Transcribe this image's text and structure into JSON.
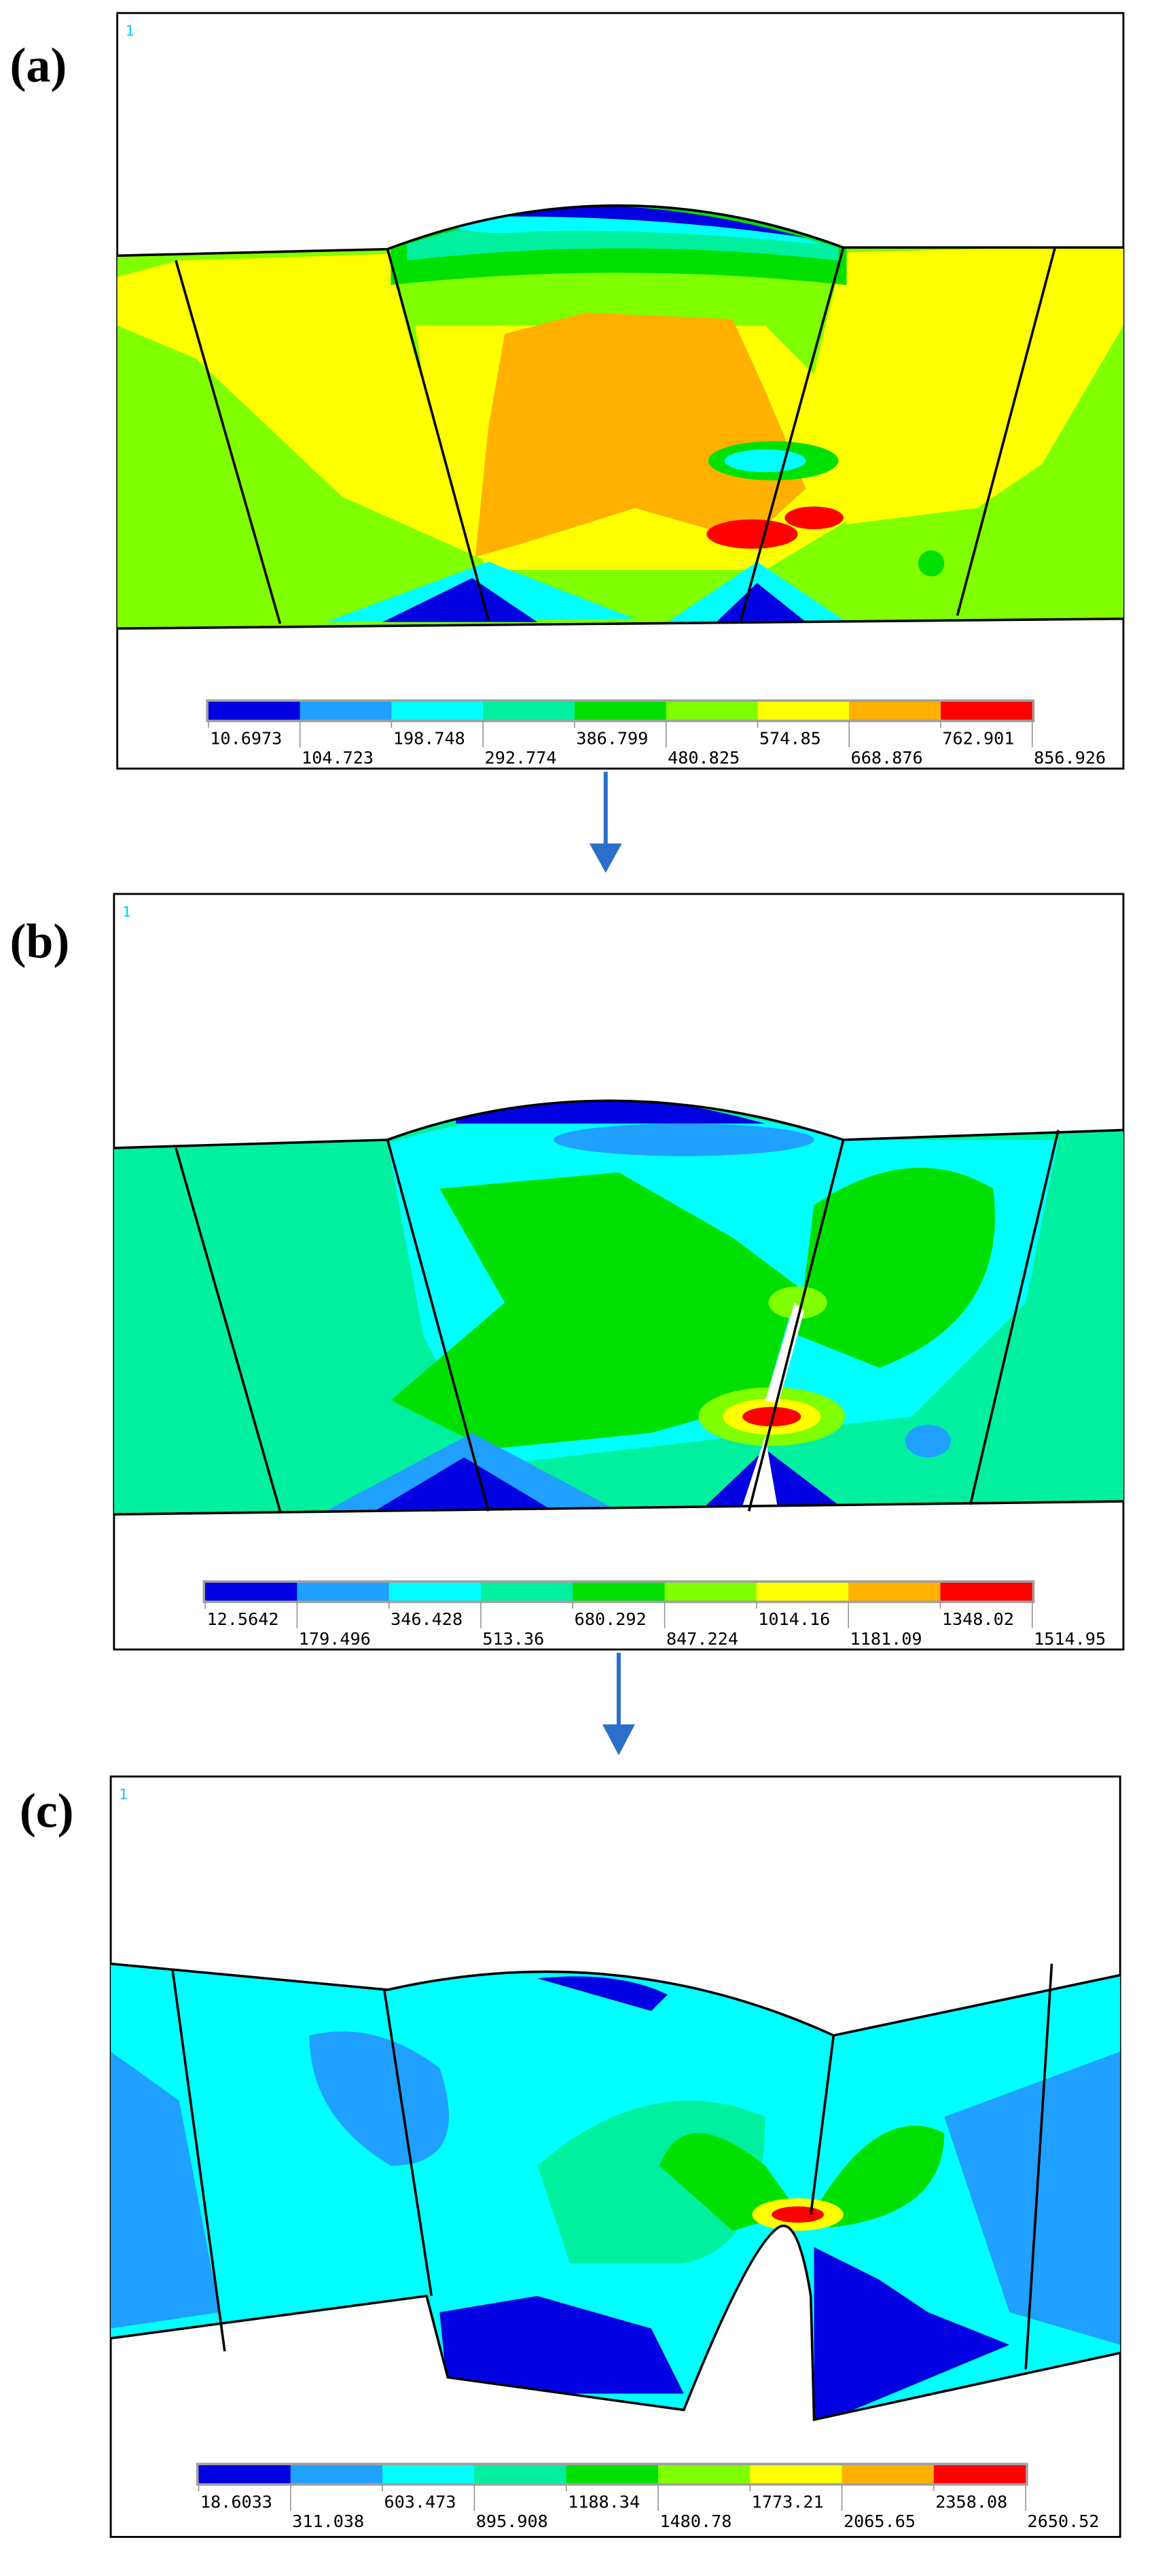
{
  "panels": [
    {
      "label": "(a)",
      "marker": "1",
      "legend": [
        "10.6973",
        "104.723",
        "198.748",
        "292.774",
        "386.799",
        "480.825",
        "574.85",
        "668.876",
        "762.901",
        "856.926"
      ]
    },
    {
      "label": "(b)",
      "marker": "1",
      "legend": [
        "12.5642",
        "179.496",
        "346.428",
        "513.36",
        "680.292",
        "847.224",
        "1014.16",
        "1181.09",
        "1348.02",
        "1514.95"
      ]
    },
    {
      "label": "(c)",
      "marker": "1",
      "legend": [
        "18.6033",
        "311.038",
        "603.473",
        "895.908",
        "1188.34",
        "1480.78",
        "1773.21",
        "2065.65",
        "2358.08",
        "2650.52"
      ]
    }
  ]
}
